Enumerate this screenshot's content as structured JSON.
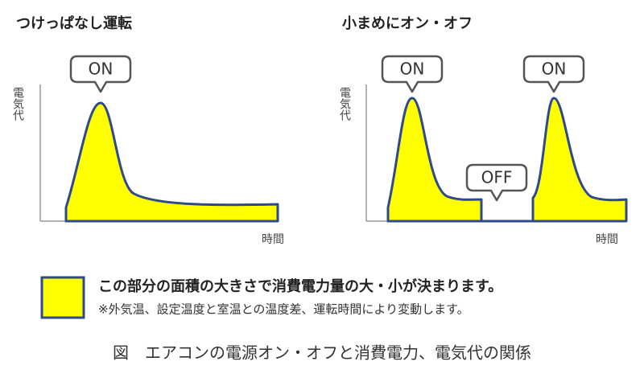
{
  "panels": [
    {
      "title": "つけっぱなし運転",
      "y_label": "電気代",
      "x_label": "時間",
      "callouts": [
        "ON"
      ]
    },
    {
      "title": "小まめにオン・オフ",
      "y_label": "電気代",
      "x_label": "時間",
      "callouts": [
        "ON",
        "OFF",
        "ON"
      ]
    }
  ],
  "legend": {
    "text": "この部分の面積の大きさで消費電力量の大・小が決まります。",
    "note": "※外気温、設定温度と室温との温度差、運転時間により変動します。"
  },
  "caption": "図　エアコンの電源オン・オフと消費電力、電気代の関係"
}
